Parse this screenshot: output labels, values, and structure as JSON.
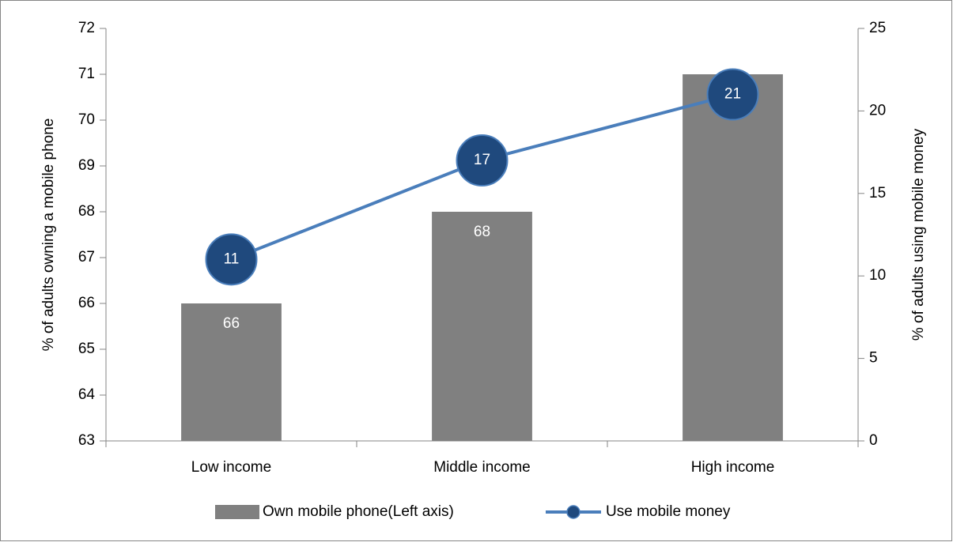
{
  "chart_data": {
    "type": "bar",
    "categories": [
      "Low income",
      "Middle income",
      "High income"
    ],
    "series": [
      {
        "name": "Own mobile phone(Left axis)",
        "type": "bar",
        "axis": "y",
        "color": "#808080",
        "values": [
          66,
          68,
          71
        ]
      },
      {
        "name": "Use mobile money",
        "type": "line",
        "axis": "y2",
        "color": "#4a7ebb",
        "marker_color": "#1f497d",
        "values": [
          11,
          17,
          21
        ]
      }
    ],
    "ylabel": "% of adults owning a mobile phone",
    "y2label": "% of adults using mobile money",
    "ylim": [
      63,
      72
    ],
    "yticks": [
      63,
      64,
      65,
      66,
      67,
      68,
      69,
      70,
      71,
      72
    ],
    "y2lim": [
      0,
      25
    ],
    "y2ticks": [
      0,
      5,
      10,
      15,
      20,
      25
    ],
    "grid": false,
    "legend": "bottom"
  }
}
